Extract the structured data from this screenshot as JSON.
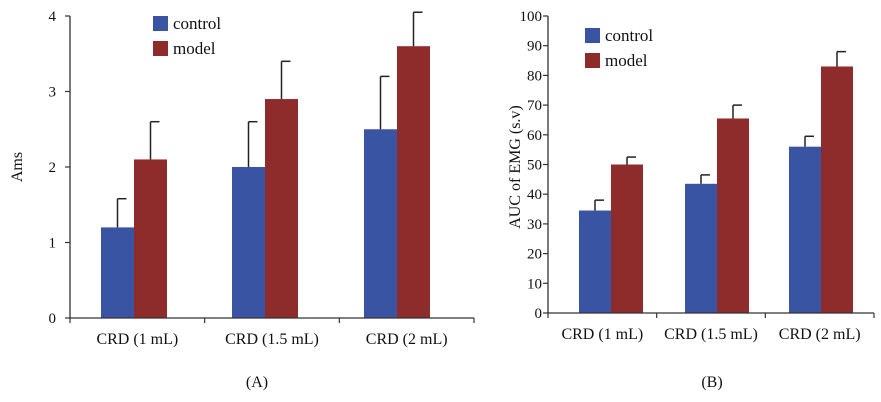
{
  "colors": {
    "control": "#3a54a4",
    "model": "#8e2b2b",
    "axis": "#333333",
    "error": "#222222"
  },
  "chart_data": [
    {
      "type": "bar",
      "panel_label": "(A)",
      "ylabel": "Ams",
      "xlabel": "",
      "ylim": [
        0,
        4
      ],
      "yticks": [
        0,
        1,
        2,
        3,
        4
      ],
      "categories": [
        "CRD (1 mL)",
        "CRD (1.5 mL)",
        "CRD (2 mL)"
      ],
      "series": [
        {
          "name": "control",
          "values": [
            1.2,
            2.0,
            2.5
          ],
          "errors": [
            0.38,
            0.6,
            0.7
          ]
        },
        {
          "name": "model",
          "values": [
            2.1,
            2.9,
            3.6
          ],
          "errors": [
            0.5,
            0.5,
            0.45
          ]
        }
      ],
      "legend": "top-left",
      "grid": false
    },
    {
      "type": "bar",
      "panel_label": "(B)",
      "ylabel": "AUC of EMG (s.v)",
      "xlabel": "",
      "ylim": [
        0,
        100
      ],
      "yticks": [
        0,
        10,
        20,
        30,
        40,
        50,
        60,
        70,
        80,
        90,
        100
      ],
      "categories": [
        "CRD (1 mL)",
        "CRD (1.5 mL)",
        "CRD (2 mL)"
      ],
      "series": [
        {
          "name": "control",
          "values": [
            34.5,
            43.5,
            56
          ],
          "errors": [
            3.5,
            3,
            3.5
          ]
        },
        {
          "name": "model",
          "values": [
            50,
            65.5,
            83
          ],
          "errors": [
            2.5,
            4.5,
            5
          ]
        }
      ],
      "legend": "top-left",
      "grid": false
    }
  ]
}
